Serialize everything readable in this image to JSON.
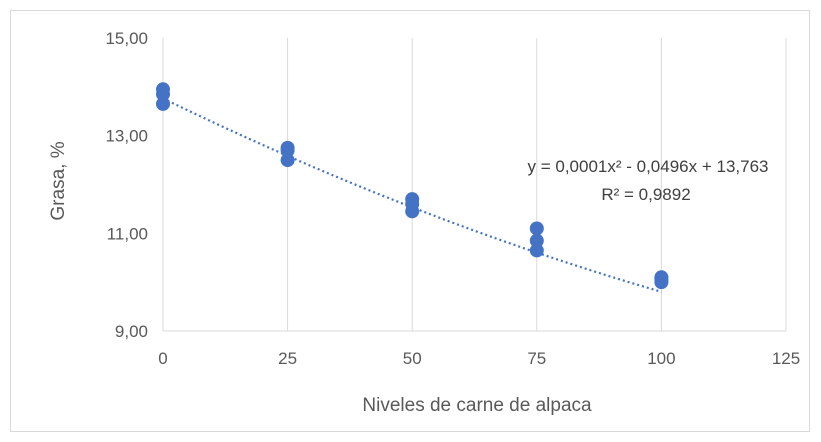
{
  "chart_data": {
    "type": "scatter",
    "title": "",
    "xlabel": "Niveles de carne de alpaca",
    "ylabel": "Grasa, %",
    "xlim": [
      0,
      125
    ],
    "ylim": [
      9,
      15
    ],
    "x_ticks": [
      "0",
      "25",
      "50",
      "75",
      "100",
      "125"
    ],
    "y_ticks": [
      "9,00",
      "11,00",
      "13,00",
      "15,00"
    ],
    "grid": "vertical",
    "series": [
      {
        "marker_color": "#4472c4",
        "points": [
          {
            "x": 0,
            "y": 13.95
          },
          {
            "x": 0,
            "y": 13.85
          },
          {
            "x": 0,
            "y": 13.65
          },
          {
            "x": 25,
            "y": 12.75
          },
          {
            "x": 25,
            "y": 12.7
          },
          {
            "x": 25,
            "y": 12.5
          },
          {
            "x": 50,
            "y": 11.7
          },
          {
            "x": 50,
            "y": 11.6
          },
          {
            "x": 50,
            "y": 11.45
          },
          {
            "x": 75,
            "y": 11.1
          },
          {
            "x": 75,
            "y": 10.85
          },
          {
            "x": 75,
            "y": 10.65
          },
          {
            "x": 100,
            "y": 10.1
          },
          {
            "x": 100,
            "y": 10.05
          },
          {
            "x": 100,
            "y": 10.0
          }
        ]
      }
    ],
    "trendline": {
      "type": "polynomial",
      "coefficients": {
        "a": 0.0001,
        "b": -0.0496,
        "c": 13.763
      },
      "x_range": [
        0,
        100
      ],
      "color": "#4472c4",
      "style": "dotted",
      "equation": "y = 0,0001x² - 0,0496x + 13,763",
      "r_squared": "R² = 0,9892"
    }
  }
}
